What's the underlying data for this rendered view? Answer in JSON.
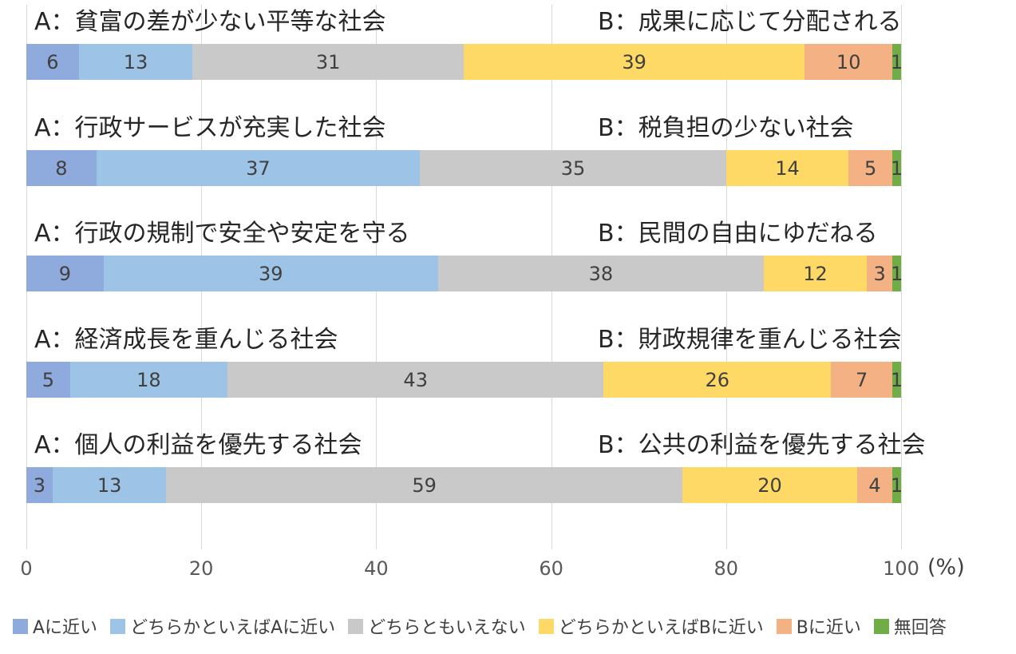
{
  "chart_data": {
    "type": "bar",
    "variant": "horizontal-100pct-stacked",
    "title": "",
    "x_ticks": [
      0,
      20,
      40,
      60,
      80,
      100
    ],
    "x_unit": "(%)",
    "xlim": [
      0,
      100
    ],
    "grid": true,
    "legend_position": "bottom",
    "series_labels": [
      "Aに近い",
      "どちらかといえばAに近い",
      "どちらともいえない",
      "どちらかといえばBに近い",
      "Bに近い",
      "無回答"
    ],
    "series_colors": [
      "#8FAADC",
      "#9DC3E6",
      "#C9C9C9",
      "#FFD966",
      "#F4B183",
      "#70AD47"
    ],
    "rows": [
      {
        "a_label": "A：貧富の差が少ない平等な社会",
        "b_label": "B：成果に応じて分配される",
        "values": [
          6,
          13,
          31,
          39,
          10,
          1
        ]
      },
      {
        "a_label": "A：行政サービスが充実した社会",
        "b_label": "B：税負担の少ない社会",
        "values": [
          8,
          37,
          35,
          14,
          5,
          1
        ]
      },
      {
        "a_label": "A：行政の規制で安全や安定を守る",
        "b_label": "B：民間の自由にゆだねる",
        "values": [
          9,
          39,
          38,
          12,
          3,
          1
        ]
      },
      {
        "a_label": "A：経済成長を重んじる社会",
        "b_label": "B：財政規律を重んじる社会",
        "values": [
          5,
          18,
          43,
          26,
          7,
          1
        ]
      },
      {
        "a_label": "A：個人の利益を優先する社会",
        "b_label": "B：公共の利益を優先する社会",
        "values": [
          3,
          13,
          59,
          20,
          4,
          1
        ]
      }
    ],
    "colors": {
      "gridline": "#D9D9D9",
      "value_text": "#404040",
      "axis_text": "#595959",
      "label_text": "#262626"
    }
  }
}
